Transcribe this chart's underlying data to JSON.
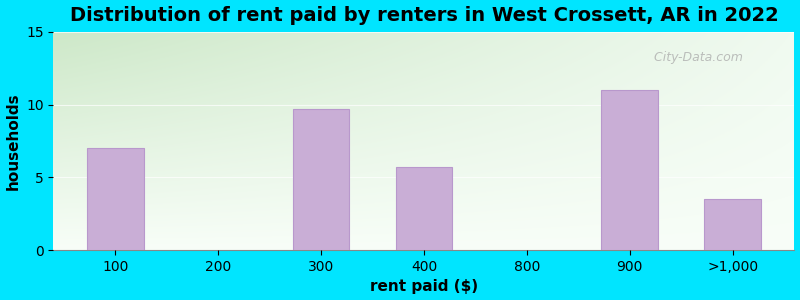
{
  "title": "Distribution of rent paid by renters in West Crossett, AR in 2022",
  "xlabel": "rent paid ($)",
  "ylabel": "households",
  "categories": [
    "100",
    "200",
    "300",
    "400",
    "800",
    "900",
    ">1,000"
  ],
  "values": [
    7,
    0,
    9.7,
    5.7,
    0,
    11,
    3.5
  ],
  "bar_color": "#c9aed6",
  "bar_edge_color": "#b898cc",
  "ylim": [
    0,
    15
  ],
  "yticks": [
    0,
    5,
    10,
    15
  ],
  "fig_bg": "#00e5ff",
  "title_fontsize": 14,
  "axis_label_fontsize": 11,
  "tick_fontsize": 10,
  "watermark": "  City-Data.com"
}
